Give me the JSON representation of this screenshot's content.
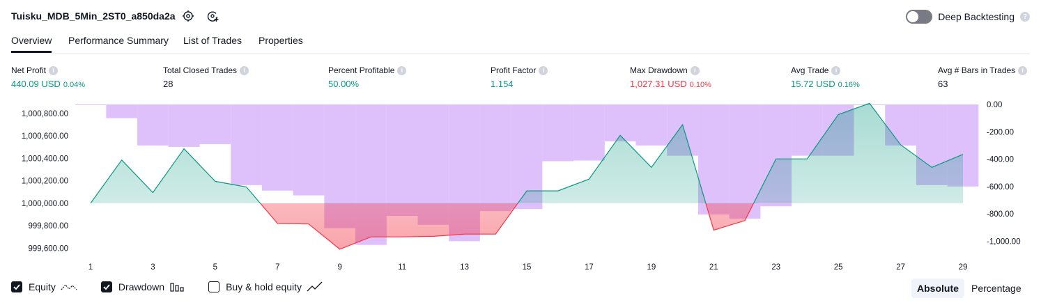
{
  "header": {
    "title": "Tuisku_MDB_5Min_2ST0_a850da2a",
    "deep_backtesting_label": "Deep Backtesting",
    "deep_backtesting_enabled": false
  },
  "tabs": [
    {
      "label": "Overview",
      "active": true
    },
    {
      "label": "Performance Summary",
      "active": false
    },
    {
      "label": "List of Trades",
      "active": false
    },
    {
      "label": "Properties",
      "active": false
    }
  ],
  "metrics": [
    {
      "label": "Net Profit",
      "value": "440.09 USD",
      "pct": "0.04%",
      "color": "#089981"
    },
    {
      "label": "Total Closed Trades",
      "value": "28",
      "pct": "",
      "color": "#131722"
    },
    {
      "label": "Percent Profitable",
      "value": "50.00%",
      "pct": "",
      "color": "#089981"
    },
    {
      "label": "Profit Factor",
      "value": "1.154",
      "pct": "",
      "color": "#089981"
    },
    {
      "label": "Max Drawdown",
      "value": "1,027.31 USD",
      "pct": "0.10%",
      "color": "#f23645"
    },
    {
      "label": "Avg Trade",
      "value": "15.72 USD",
      "pct": "0.16%",
      "color": "#089981"
    },
    {
      "label": "Avg # Bars in Trades",
      "value": "63",
      "pct": "",
      "color": "#131722"
    }
  ],
  "chart_data": {
    "type": "area",
    "x": [
      1,
      2,
      3,
      4,
      5,
      6,
      7,
      8,
      9,
      10,
      11,
      12,
      13,
      14,
      15,
      16,
      17,
      18,
      19,
      20,
      21,
      22,
      23,
      24,
      25,
      26,
      27,
      28,
      29
    ],
    "x_tick_labels": [
      "1",
      "3",
      "5",
      "7",
      "9",
      "11",
      "13",
      "15",
      "17",
      "19",
      "21",
      "23",
      "25",
      "27",
      "29"
    ],
    "left_axis": {
      "tick_labels": [
        "1,000,800.00",
        "1,000,600.00",
        "1,000,400.00",
        "1,000,200.00",
        "1,000,000.00",
        "999,800.00",
        "999,600.00"
      ],
      "range": [
        999540,
        1000880
      ]
    },
    "right_axis": {
      "tick_labels": [
        "0.00",
        "-200.00",
        "-400.00",
        "-600.00",
        "-800.00",
        "-1,000.00"
      ],
      "range": [
        -1100,
        0
      ]
    },
    "equity_baseline": 1000000,
    "series": [
      {
        "name": "Equity",
        "axis": "left",
        "color_positive": "#089981",
        "color_negative": "#f23645",
        "values": [
          1000000,
          1000385,
          1000095,
          1000485,
          1000195,
          1000145,
          999820,
          999815,
          999590,
          999700,
          999700,
          999705,
          999725,
          999725,
          1000110,
          1000110,
          1000215,
          1000605,
          1000320,
          1000700,
          999760,
          999845,
          1000395,
          1000395,
          1000790,
          1000890,
          1000520,
          1000320,
          1000435
        ]
      },
      {
        "name": "Drawdown",
        "axis": "right",
        "color": "#c99bf7",
        "values": [
          0,
          -100,
          -300,
          -310,
          -290,
          -590,
          -630,
          -665,
          -905,
          -1027,
          -815,
          -880,
          -1000,
          -780,
          -765,
          -415,
          -410,
          -270,
          -300,
          -375,
          -805,
          -835,
          -745,
          -375,
          -375,
          0,
          -300,
          -590,
          -600
        ]
      }
    ]
  },
  "legend": [
    {
      "label": "Equity",
      "checked": true,
      "icon": "equity-line-icon"
    },
    {
      "label": "Drawdown",
      "checked": true,
      "icon": "drawdown-bars-icon"
    },
    {
      "label": "Buy & hold equity",
      "checked": false,
      "icon": "buy-hold-line-icon"
    }
  ],
  "modes": [
    {
      "label": "Absolute",
      "active": true
    },
    {
      "label": "Percentage",
      "active": false
    }
  ]
}
